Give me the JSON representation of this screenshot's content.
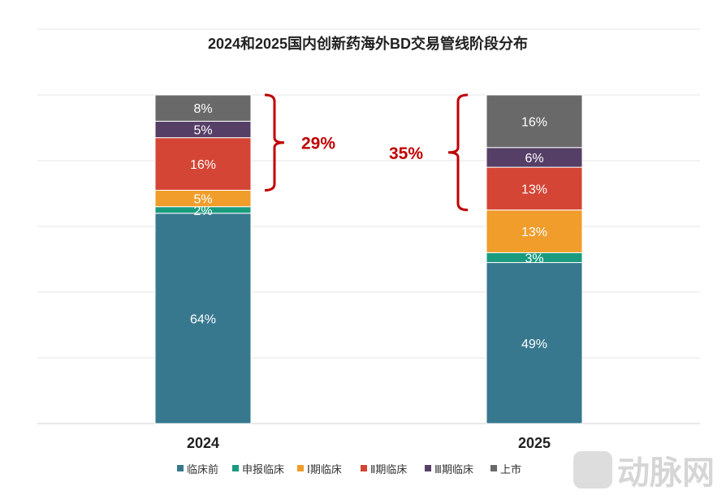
{
  "chart_data": {
    "type": "bar",
    "stacked": true,
    "title": "2024和2025国内创新药海外BD交易管线阶段分布",
    "categories": [
      "2024",
      "2025"
    ],
    "ylim": [
      0,
      100
    ],
    "grid": true,
    "legend_position": "bottom",
    "series": [
      {
        "name": "临床前",
        "values": [
          64,
          49
        ],
        "color": "#37788f"
      },
      {
        "name": "申报临床",
        "values": [
          2,
          3
        ],
        "color": "#1a9b7f"
      },
      {
        "name": "Ⅰ期临床",
        "values": [
          5,
          13
        ],
        "color": "#f09d2b"
      },
      {
        "name": "Ⅱ期临床",
        "values": [
          16,
          13
        ],
        "color": "#d44535"
      },
      {
        "name": "Ⅲ期临床",
        "values": [
          5,
          6
        ],
        "color": "#553f66"
      },
      {
        "name": "上市",
        "values": [
          8,
          16
        ],
        "color": "#696969"
      }
    ],
    "data_labels": [
      [
        "64%",
        "2%",
        "5%",
        "16%",
        "5%",
        "8%"
      ],
      [
        "49%",
        "3%",
        "13%",
        "13%",
        "6%",
        "16%"
      ]
    ],
    "annotations": [
      {
        "category": "2024",
        "text": "29%",
        "spans": [
          "Ⅱ期临床",
          "Ⅲ期临床",
          "上市"
        ],
        "color": "#c00000"
      },
      {
        "category": "2025",
        "text": "35%",
        "spans": [
          "Ⅱ期临床",
          "Ⅲ期临床",
          "上市"
        ],
        "color": "#c00000"
      }
    ]
  },
  "watermark": "动脉网"
}
